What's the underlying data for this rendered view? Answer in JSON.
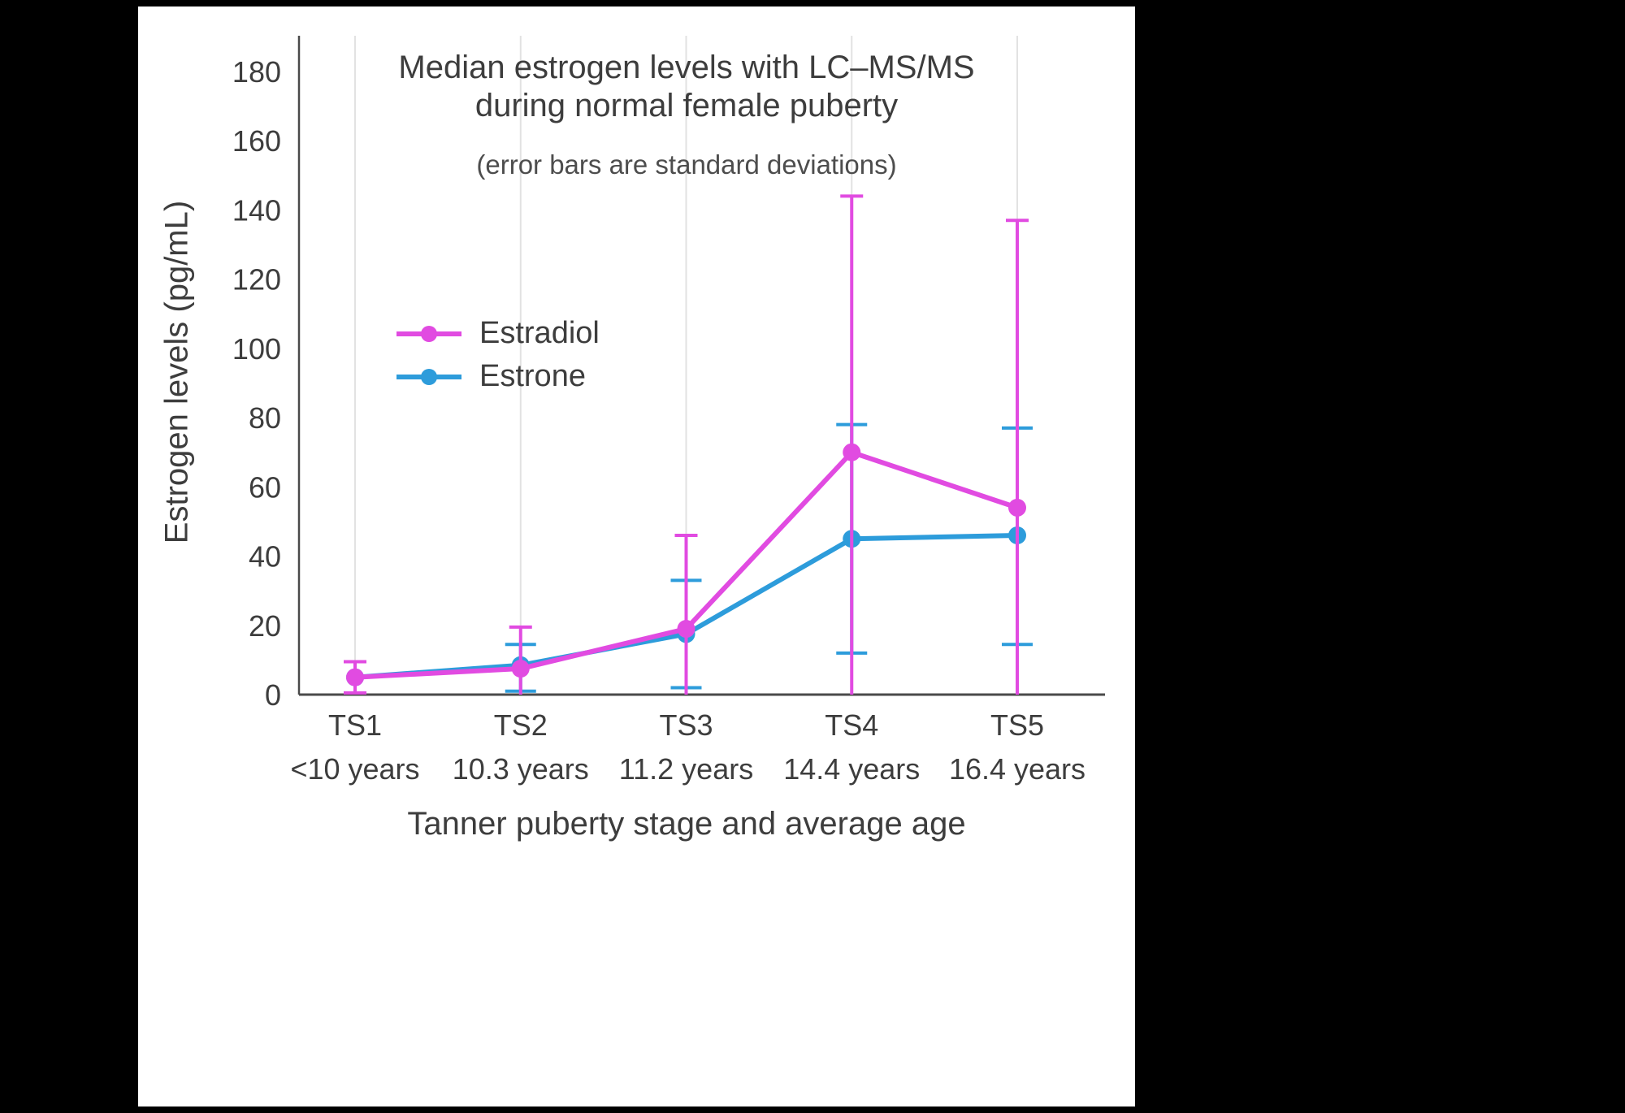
{
  "frame": {
    "background": "#000000",
    "canvas_background": "#FFFFFF"
  },
  "chart_data": {
    "type": "line",
    "title": "Median estrogen levels with LC–MS/MS during normal female puberty",
    "title_line1": "Median estrogen levels with LC–MS/MS",
    "title_line2": "during normal female puberty",
    "subtitle": "(error bars are standard deviations)",
    "xlabel": "Tanner puberty stage and average age",
    "ylabel": "Estrogen levels (pg/mL)",
    "categories": [
      "TS1",
      "TS2",
      "TS3",
      "TS4",
      "TS5"
    ],
    "age_labels": [
      "<10 years",
      "10.3 years",
      "11.2 years",
      "14.4 years",
      "16.4 years"
    ],
    "ylim": [
      0,
      180
    ],
    "yticks": [
      0,
      20,
      40,
      60,
      80,
      100,
      120,
      140,
      160,
      180
    ],
    "grid": "vertical-only",
    "legend_position": "inside-upper-left",
    "colors": {
      "grid": "#E2E2E2",
      "axis": "#4A4A4A",
      "text": "#3D3D3D",
      "subtitle_text": "#4D4D4D"
    },
    "series": [
      {
        "name": "Estradiol",
        "color": "#E14BE1",
        "values": [
          5,
          7.5,
          19,
          70,
          54
        ],
        "upper": [
          9.5,
          19.5,
          46,
          144,
          137
        ],
        "lower": [
          0.5,
          null,
          null,
          null,
          null
        ],
        "cap_halfwidth": 14
      },
      {
        "name": "Estrone",
        "color": "#2D9CDB",
        "values": [
          5,
          8.5,
          17.5,
          45,
          46
        ],
        "upper": [
          null,
          14.5,
          33,
          78,
          77
        ],
        "lower": [
          null,
          1,
          2,
          12,
          14.5
        ],
        "cap_halfwidth": 19
      }
    ]
  }
}
